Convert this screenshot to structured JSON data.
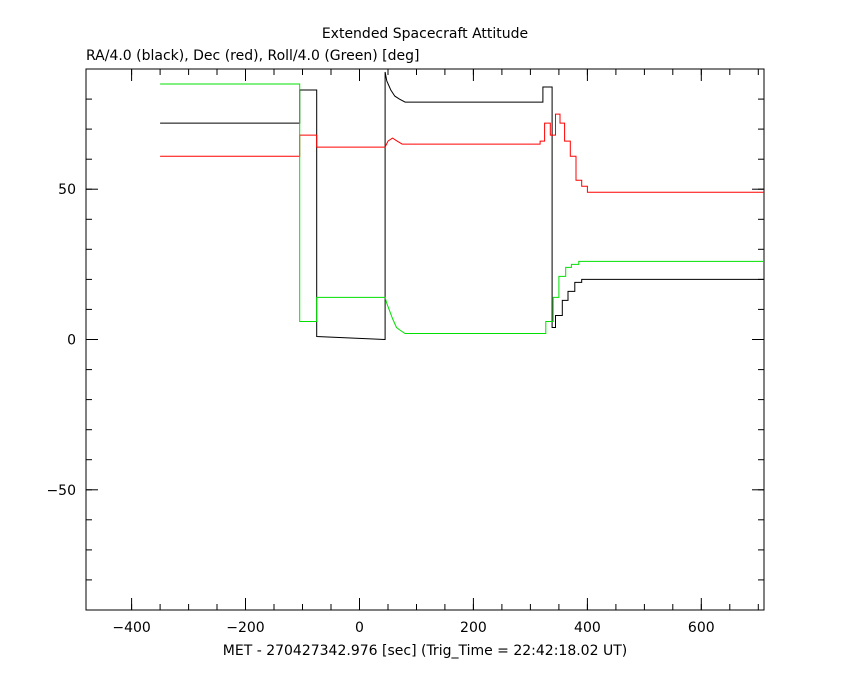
{
  "chart_data": {
    "type": "line",
    "title": "Extended Spacecraft Attitude",
    "subtitle": "RA/4.0 (black), Dec (red), Roll/4.0 (Green) [deg]",
    "xlabel": "MET - 270427342.976 [sec] (Trig_Time = 22:42:18.02 UT)",
    "ylabel": "",
    "xlim": [
      -480,
      710
    ],
    "ylim": [
      -90,
      90
    ],
    "x_ticks": [
      -400,
      -200,
      0,
      200,
      400,
      600
    ],
    "y_ticks": [
      -50,
      0,
      50
    ],
    "x_ticks_minor": [
      -400,
      -350,
      -300,
      -250,
      -200,
      -150,
      -100,
      -50,
      0,
      50,
      100,
      150,
      200,
      250,
      300,
      350,
      400,
      450,
      500,
      550,
      600,
      650,
      700
    ],
    "y_ticks_minor": [
      -80,
      -70,
      -60,
      -50,
      -40,
      -30,
      -20,
      -10,
      0,
      10,
      20,
      30,
      40,
      50,
      60,
      70,
      80
    ],
    "grid": false,
    "legend": "none",
    "series": [
      {
        "color": "#000000",
        "x": [
          -350,
          -105,
          -105,
          -75,
          -75,
          45,
          45,
          48,
          55,
          62,
          70,
          80,
          100,
          200,
          322,
          322,
          338,
          338,
          344,
          344,
          356,
          356,
          366,
          366,
          378,
          378,
          390,
          390,
          710
        ],
        "y": [
          72,
          72,
          83,
          83,
          1,
          0,
          89,
          86,
          83,
          81,
          80,
          79,
          79,
          79,
          79,
          84,
          84,
          4,
          4,
          8,
          8,
          13,
          13,
          16,
          16,
          19,
          19,
          20,
          20
        ]
      },
      {
        "color": "#ff0000",
        "x": [
          -350,
          -105,
          -105,
          -75,
          -75,
          45,
          50,
          58,
          66,
          75,
          100,
          200,
          317,
          317,
          325,
          325,
          335,
          335,
          344,
          344,
          352,
          352,
          360,
          360,
          370,
          370,
          380,
          380,
          390,
          390,
          400,
          400,
          710
        ],
        "y": [
          61,
          61,
          68,
          68,
          64,
          64,
          66,
          67,
          66,
          65,
          65,
          65,
          65,
          66,
          66,
          72,
          72,
          68,
          68,
          75,
          75,
          72,
          72,
          66,
          66,
          61,
          61,
          53,
          53,
          51,
          51,
          49,
          49
        ]
      },
      {
        "color": "#00e000",
        "x": [
          -350,
          -105,
          -105,
          -75,
          -75,
          45,
          48,
          52,
          58,
          65,
          72,
          80,
          100,
          200,
          327,
          327,
          340,
          340,
          350,
          350,
          362,
          362,
          372,
          372,
          385,
          385,
          710
        ],
        "y": [
          85,
          85,
          6,
          6,
          14,
          14,
          12,
          10,
          7,
          4,
          3,
          2,
          2,
          2,
          2,
          6,
          6,
          14,
          14,
          21,
          21,
          24,
          24,
          25,
          25,
          26,
          26
        ]
      }
    ]
  }
}
